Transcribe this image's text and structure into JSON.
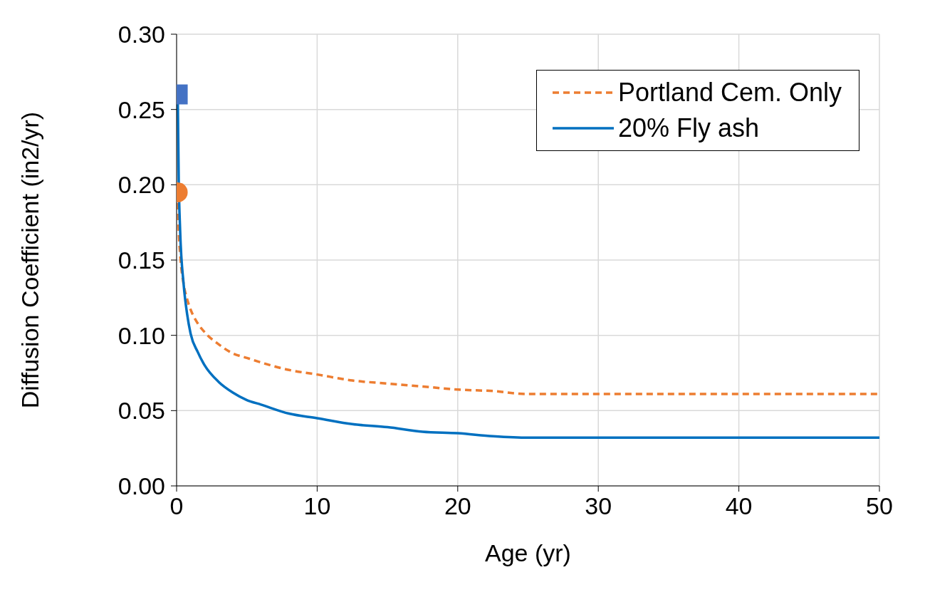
{
  "chart_data": {
    "type": "line",
    "xlabel": "Age (yr)",
    "ylabel": "Diffusion Coefficient (in2/yr)",
    "xlim": [
      0,
      50
    ],
    "xticks": [
      0,
      10,
      20,
      30,
      40,
      50
    ],
    "ylim": [
      0,
      0.3
    ],
    "yticks": [
      {
        "value": 0,
        "label": "0.00"
      },
      {
        "value": 0.05,
        "label": "0.05"
      },
      {
        "value": 0.1,
        "label": "0.10"
      },
      {
        "value": 0.15,
        "label": "0.15"
      },
      {
        "value": 0.2,
        "label": "0.20"
      },
      {
        "value": 0.25,
        "label": "0.25"
      },
      {
        "value": 0.3,
        "label": "0.30"
      }
    ],
    "grid": true,
    "legend": "top right",
    "series": [
      {
        "name": "Portland Cem. Only",
        "type": "line",
        "color": "#ed7d31",
        "line_style": "dashed",
        "marker": "none",
        "x": [
          0.08,
          0.15,
          0.25,
          0.5,
          0.75,
          1,
          1.5,
          2,
          3,
          4,
          5,
          6,
          8,
          10,
          12.5,
          15,
          17.5,
          20,
          22.5,
          25,
          50
        ],
        "values": [
          0.195,
          0.17,
          0.154,
          0.134,
          0.124,
          0.117,
          0.108,
          0.102,
          0.094,
          0.088,
          0.085,
          0.082,
          0.077,
          0.074,
          0.07,
          0.068,
          0.066,
          0.064,
          0.063,
          0.061,
          0.061
        ]
      },
      {
        "name": "20% Fly ash",
        "type": "line",
        "color": "#0070c0",
        "line_style": "solid",
        "marker": "none",
        "x": [
          0.08,
          0.15,
          0.25,
          0.5,
          0.75,
          1,
          1.5,
          2,
          3,
          4,
          5,
          6,
          8,
          10,
          12.5,
          15,
          17.5,
          20,
          22.5,
          25,
          50
        ],
        "values": [
          0.26,
          0.204,
          0.17,
          0.134,
          0.114,
          0.101,
          0.089,
          0.08,
          0.069,
          0.062,
          0.057,
          0.054,
          0.048,
          0.045,
          0.041,
          0.039,
          0.036,
          0.035,
          0.033,
          0.032,
          0.032
        ]
      },
      {
        "type": "scatter",
        "color": "#4472c4",
        "marker": "square",
        "x": [
          0.08
        ],
        "values": [
          0.26
        ]
      },
      {
        "type": "scatter",
        "color": "#ed7d31",
        "marker": "circle",
        "x": [
          0.08
        ],
        "values": [
          0.195
        ]
      }
    ]
  }
}
